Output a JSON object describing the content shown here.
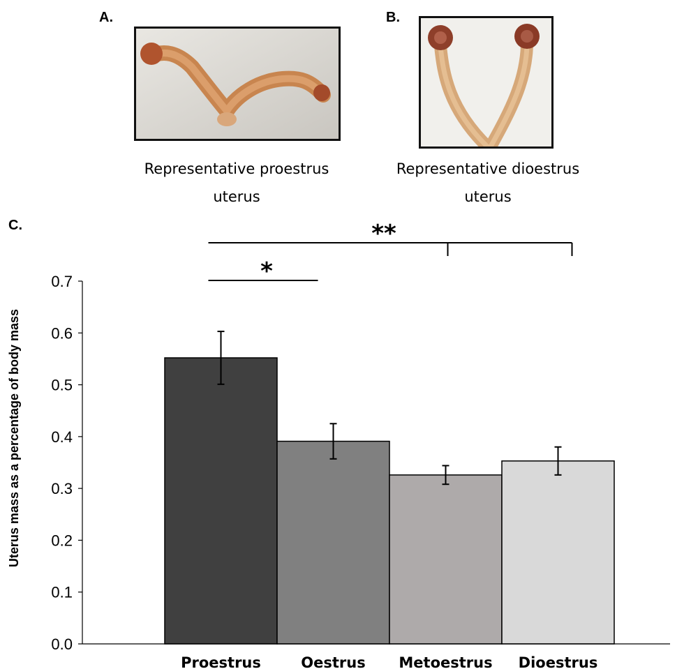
{
  "panels": {
    "a": {
      "label": "A.",
      "caption_line1": "Representative proestrus",
      "caption_line2": "uterus"
    },
    "b": {
      "label": "B.",
      "caption_line1": "Representative dioestrus",
      "caption_line2": "uterus"
    },
    "c": {
      "label": "C."
    }
  },
  "chart_data": {
    "type": "bar",
    "title": "",
    "xlabel": "",
    "ylabel": "Uterus mass as a percentage of body mass",
    "categories": [
      "Proestrus",
      "Oestrus",
      "Metoestrus",
      "Dioestrus"
    ],
    "values": [
      0.552,
      0.391,
      0.326,
      0.353
    ],
    "errors": [
      0.051,
      0.034,
      0.018,
      0.027
    ],
    "colors": [
      "#404040",
      "#808080",
      "#aeaaaa",
      "#d9d9d9"
    ],
    "ylim": [
      0.0,
      0.7
    ],
    "yticks": [
      "0.0",
      "0.1",
      "0.2",
      "0.3",
      "0.4",
      "0.5",
      "0.6",
      "0.7"
    ],
    "grid": false,
    "legend": "none",
    "significance": [
      {
        "label": "*",
        "from": "Proestrus",
        "to": "Oestrus"
      },
      {
        "label": "**",
        "from": "Proestrus",
        "to": [
          "Metoestrus",
          "Dioestrus"
        ]
      }
    ]
  }
}
